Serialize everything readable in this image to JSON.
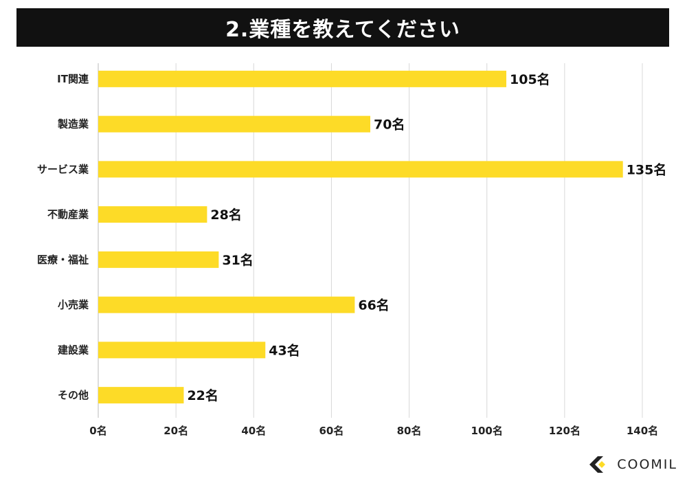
{
  "brand": {
    "name": "COOMIL"
  },
  "colors": {
    "bar": "#FDDB27",
    "grid": "#d8d8d8",
    "title_bg": "#111111"
  },
  "chart_data": {
    "type": "bar",
    "orientation": "horizontal",
    "title": "2.業種を教えてください",
    "unit": "名",
    "categories": [
      "IT関連",
      "製造業",
      "サービス業",
      "不動産業",
      "医療・福祉",
      "小売業",
      "建設業",
      "その他"
    ],
    "values": [
      105,
      70,
      135,
      28,
      31,
      66,
      43,
      22
    ],
    "value_labels": [
      "105名",
      "70名",
      "135名",
      "28名",
      "31名",
      "66名",
      "43名",
      "22名"
    ],
    "xlim": [
      0,
      140
    ],
    "x_ticks": [
      0,
      20,
      40,
      60,
      80,
      100,
      120,
      140
    ],
    "x_tick_labels": [
      "0名",
      "20名",
      "40名",
      "60名",
      "80名",
      "100名",
      "120名",
      "140名"
    ],
    "grid": true,
    "legend": false
  }
}
